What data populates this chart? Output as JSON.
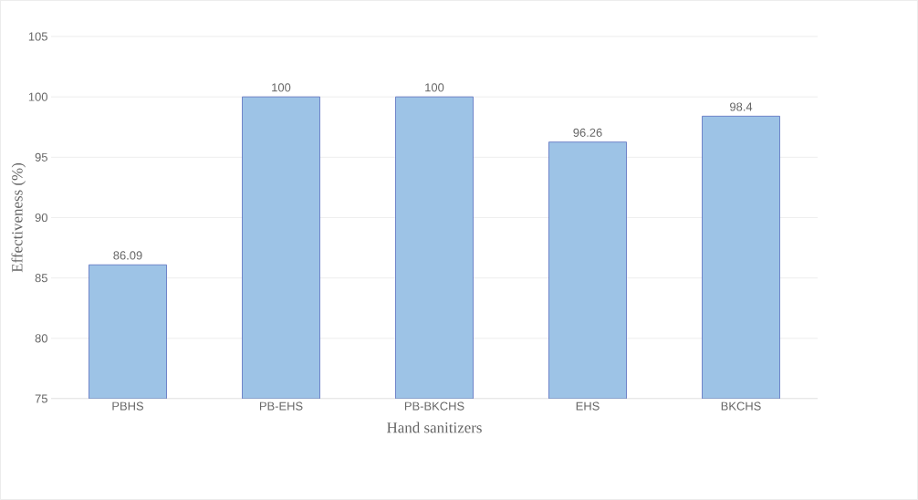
{
  "chart_data": {
    "type": "bar",
    "xlabel": "Hand sanitizers",
    "ylabel": "Effectiveness (%)",
    "categories": [
      "PBHS",
      "PB-EHS",
      "PB-BKCHS",
      "EHS",
      "BKCHS"
    ],
    "values": [
      86.09,
      100,
      100,
      96.26,
      98.4
    ],
    "color": "#9dc3e6",
    "ylim": [
      75,
      105
    ],
    "yticks": [
      75,
      80,
      85,
      90,
      95,
      100,
      105
    ],
    "grid": "y",
    "data_labels": true
  }
}
